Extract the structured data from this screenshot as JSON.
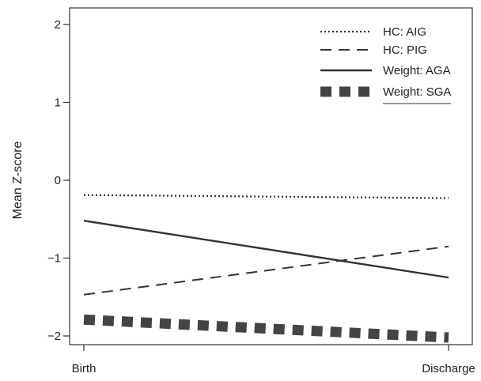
{
  "chart_data": {
    "type": "line",
    "title": "",
    "xlabel": "",
    "ylabel": "Mean Z-score",
    "categories": [
      "Birth",
      "Discharge"
    ],
    "ylim": [
      -2.1,
      2.2
    ],
    "yticks": [
      "2",
      "1",
      "0",
      "−1",
      "−2"
    ],
    "ytick_values": [
      2,
      1,
      0,
      -1,
      -2
    ],
    "grid": false,
    "legend_position": "top-right",
    "series": [
      {
        "name": "HC: AIG",
        "values": [
          -0.19,
          -0.23
        ],
        "style": "dotted",
        "color": "#333333"
      },
      {
        "name": "HC: PIG",
        "values": [
          -1.47,
          -0.85
        ],
        "style": "dashed",
        "color": "#333333"
      },
      {
        "name": "Weight: AGA",
        "values": [
          -0.52,
          -1.25
        ],
        "style": "solid",
        "color": "#333333"
      },
      {
        "name": "Weight: SGA",
        "values": [
          -1.79,
          -2.02
        ],
        "style": "thick-dashed",
        "color": "#444444"
      }
    ]
  }
}
